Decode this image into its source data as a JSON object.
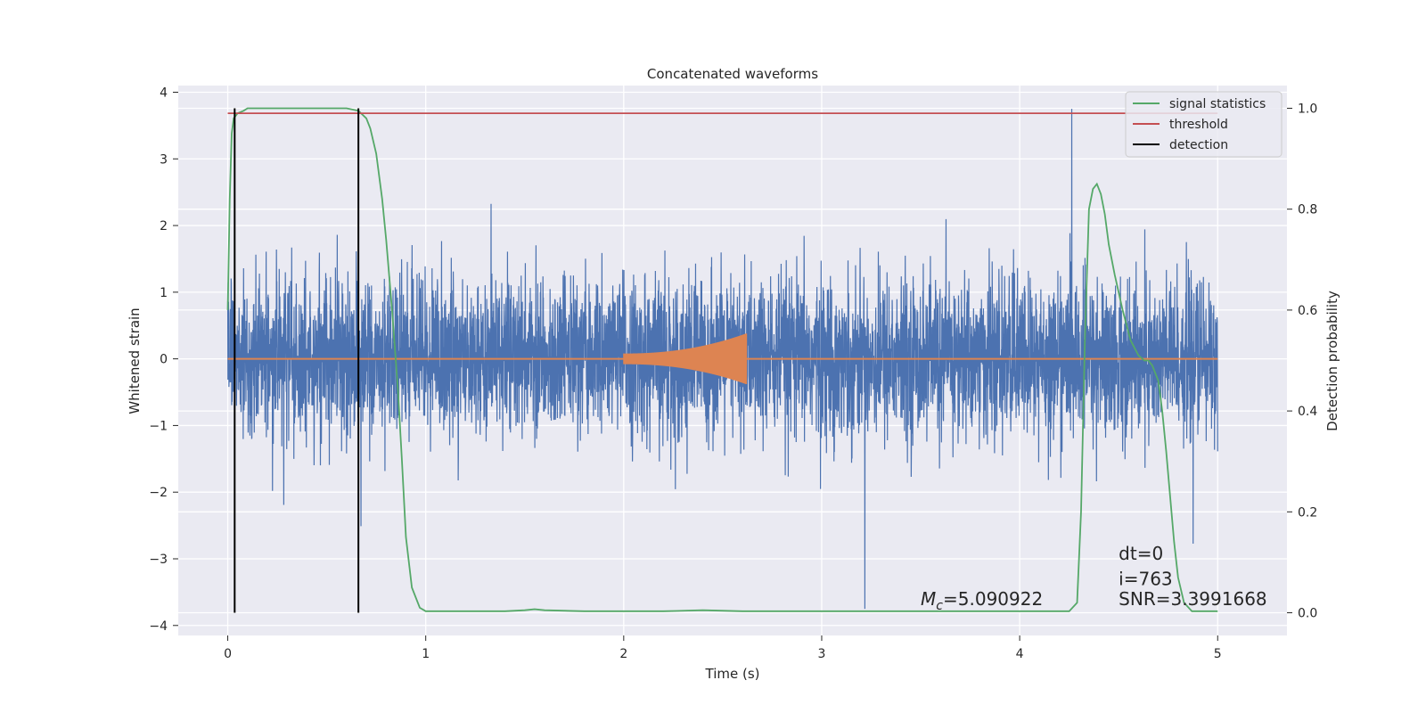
{
  "chart_data": {
    "type": "line",
    "title": "Concatenated waveforms",
    "xlabel": "Time (s)",
    "ylabel_left": "Whitened strain",
    "ylabel_right": "Detection probability",
    "xlim": [
      -0.25,
      5.35
    ],
    "ylim_left": [
      -4.15,
      4.1
    ],
    "ylim_right": [
      -0.045,
      1.045
    ],
    "x_ticks": [
      0,
      1,
      2,
      3,
      4,
      5
    ],
    "x_tick_labels": [
      "0",
      "1",
      "2",
      "3",
      "4",
      "5"
    ],
    "y_left_ticks": [
      -4,
      -3,
      -2,
      -1,
      0,
      1,
      2,
      3,
      4
    ],
    "y_left_tick_labels": [
      "−4",
      "−3",
      "−2",
      "−1",
      "0",
      "1",
      "2",
      "3",
      "4"
    ],
    "y_right_ticks": [
      0,
      0.2,
      0.4,
      0.6,
      0.8,
      1.0
    ],
    "y_right_tick_labels": [
      "0.0",
      "0.2",
      "0.4",
      "0.6",
      "0.8",
      "1.0"
    ],
    "grid": true,
    "legend_position": "top-right",
    "series": [
      {
        "kind": "noise",
        "axis": "left",
        "color": "#4c72b0",
        "x_range": [
          0,
          5
        ],
        "typical_amplitude": 1.4,
        "peak_amplitude": 3.75
      },
      {
        "kind": "chirp",
        "axis": "left",
        "color": "#dd8452",
        "x_range": [
          2.0,
          2.62
        ],
        "amplitude_start": 0.08,
        "amplitude_end": 0.38
      },
      {
        "name": "signal statistics",
        "kind": "line",
        "axis": "right",
        "color": "#55a868",
        "x": [
          0,
          0.01,
          0.02,
          0.03,
          0.05,
          0.08,
          0.1,
          0.2,
          0.4,
          0.6,
          0.66,
          0.7,
          0.72,
          0.75,
          0.78,
          0.8,
          0.83,
          0.86,
          0.88,
          0.9,
          0.93,
          0.97,
          1.0,
          1.2,
          1.4,
          1.5,
          1.55,
          1.6,
          1.8,
          2.0,
          2.2,
          2.4,
          2.6,
          3.0,
          3.5,
          4.0,
          4.25,
          4.29,
          4.31,
          4.33,
          4.35,
          4.37,
          4.39,
          4.41,
          4.43,
          4.45,
          4.48,
          4.52,
          4.56,
          4.6,
          4.63,
          4.65,
          4.67,
          4.7,
          4.72,
          4.74,
          4.76,
          4.78,
          4.8,
          4.83,
          4.87,
          5.0
        ],
        "y": [
          0.6,
          0.82,
          0.95,
          0.98,
          0.99,
          0.995,
          1.0,
          1.0,
          1.0,
          1.0,
          0.995,
          0.98,
          0.96,
          0.91,
          0.82,
          0.74,
          0.6,
          0.44,
          0.3,
          0.15,
          0.05,
          0.01,
          0.003,
          0.003,
          0.003,
          0.005,
          0.007,
          0.005,
          0.003,
          0.003,
          0.003,
          0.005,
          0.003,
          0.003,
          0.003,
          0.003,
          0.003,
          0.02,
          0.2,
          0.55,
          0.8,
          0.84,
          0.85,
          0.83,
          0.79,
          0.73,
          0.67,
          0.6,
          0.54,
          0.51,
          0.5,
          0.5,
          0.49,
          0.46,
          0.4,
          0.32,
          0.23,
          0.14,
          0.07,
          0.02,
          0.003,
          0.003
        ]
      },
      {
        "name": "threshold",
        "kind": "hline",
        "axis": "right",
        "color": "#c44e52",
        "y": 0.99,
        "x_range": [
          0,
          5
        ]
      },
      {
        "name": "detection",
        "kind": "vlines",
        "axis": "right",
        "color": "#000000",
        "x": [
          0.035,
          0.66
        ],
        "y_range": [
          0,
          1
        ]
      }
    ],
    "annotations": [
      {
        "id": "mc",
        "label": "M",
        "subscript": "c",
        "text": "=5.090922",
        "x": 3.5,
        "y_right": 0.015
      },
      {
        "id": "dt",
        "text": "dt=0",
        "x": 4.5,
        "y_right": 0.105
      },
      {
        "id": "i",
        "text": "i=763",
        "x": 4.5,
        "y_right": 0.055
      },
      {
        "id": "snr",
        "text": "SNR=3.3991668",
        "x": 4.5,
        "y_right": 0.015
      }
    ]
  }
}
